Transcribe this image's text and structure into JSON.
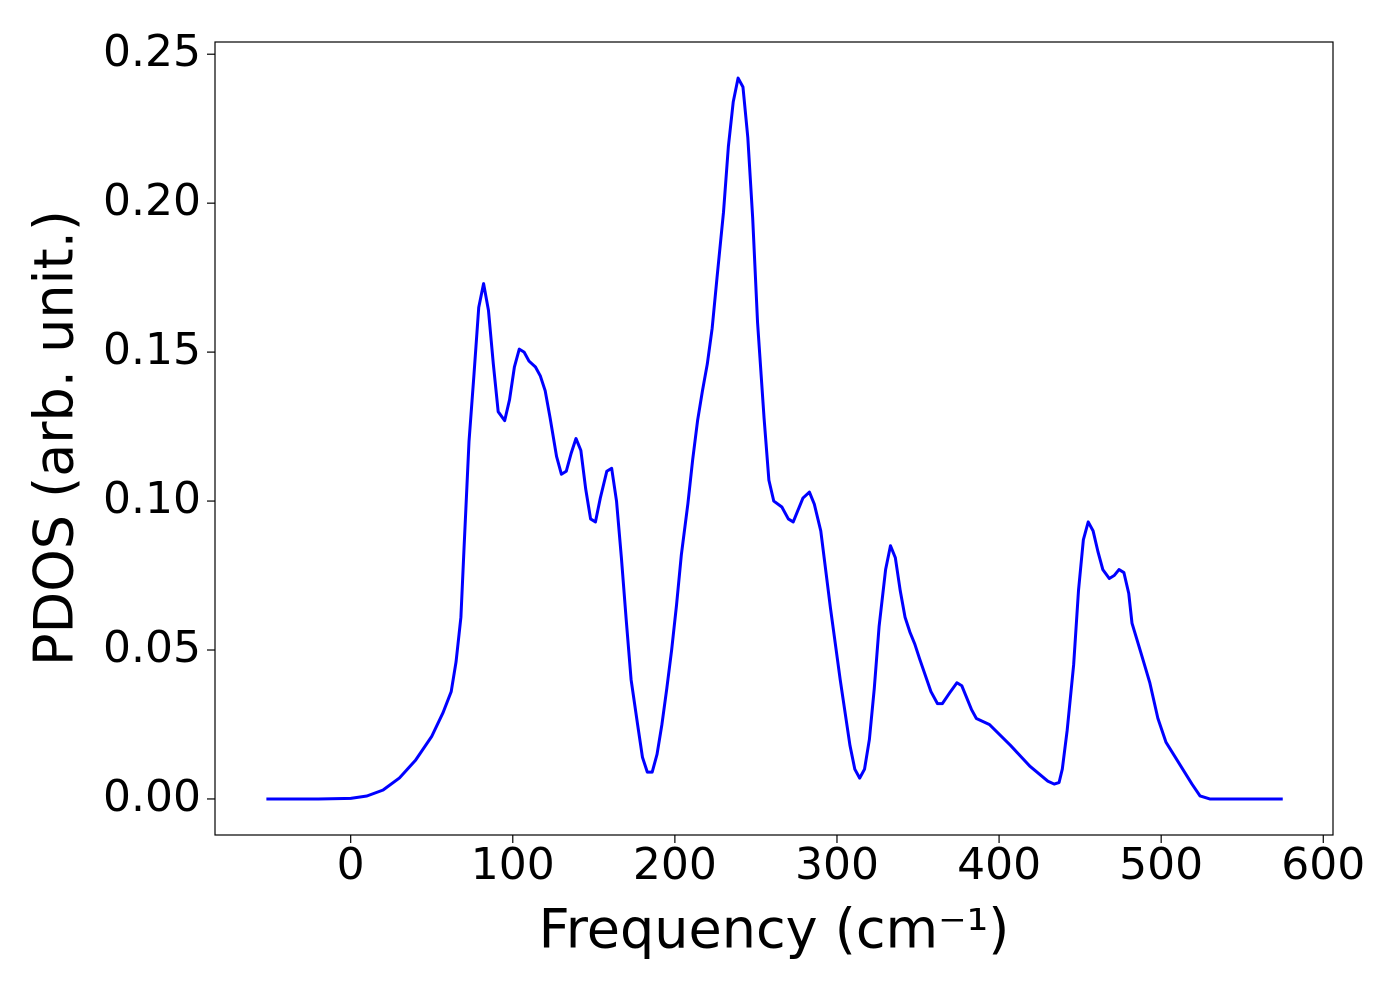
{
  "chart_data": {
    "type": "line",
    "xlabel": "Frequency (cm⁻¹)",
    "ylabel": "PDOS (arb. unit.)",
    "xlim": [
      -83.7,
      606
    ],
    "ylim": [
      -0.0121,
      0.2541
    ],
    "xticks": [
      0,
      100,
      200,
      300,
      400,
      500,
      600
    ],
    "yticks": [
      {
        "value": 0,
        "label": "0.00"
      },
      {
        "value": 0.05,
        "label": "0.05"
      },
      {
        "value": 0.1,
        "label": "0.10"
      },
      {
        "value": 0.15,
        "label": "0.15"
      },
      {
        "value": 0.2,
        "label": "0.20"
      },
      {
        "value": 0.25,
        "label": "0.25"
      }
    ],
    "series": [
      {
        "color": "#0000ff",
        "x": [
          -52,
          -20,
          0,
          10,
          20,
          30,
          40,
          50,
          57,
          62,
          65,
          68,
          70,
          73,
          76,
          79,
          82,
          85,
          88,
          91,
          95,
          98,
          101,
          104,
          107,
          110,
          114,
          117,
          120,
          123,
          127,
          130,
          133,
          136,
          139,
          142,
          145,
          148,
          151,
          154,
          158,
          161,
          164,
          167,
          170,
          173,
          177,
          180,
          183,
          186,
          189,
          192,
          195,
          198,
          201,
          204,
          208,
          211,
          214,
          217,
          220,
          223,
          226,
          230,
          233,
          236,
          239,
          242,
          245,
          248,
          251,
          255,
          258,
          261,
          266,
          270,
          273,
          276,
          279,
          283,
          286,
          290,
          296,
          302,
          308,
          311,
          314,
          317,
          320,
          323,
          326,
          330,
          333,
          336,
          339,
          342,
          345,
          348,
          351,
          358,
          362,
          365,
          370,
          374,
          377,
          383,
          386,
          394,
          407,
          419,
          430,
          434,
          437,
          439,
          442,
          446,
          449,
          452,
          455,
          458,
          461,
          464,
          468,
          471,
          474,
          477,
          480,
          482,
          487,
          493,
          498,
          503,
          511,
          519,
          524,
          530,
          575
        ],
        "values": [
          0,
          0,
          0.0002,
          0.001,
          0.003,
          0.007,
          0.013,
          0.021,
          0.029,
          0.036,
          0.046,
          0.061,
          0.085,
          0.12,
          0.142,
          0.165,
          0.173,
          0.164,
          0.146,
          0.13,
          0.127,
          0.134,
          0.145,
          0.151,
          0.15,
          0.147,
          0.145,
          0.142,
          0.137,
          0.128,
          0.115,
          0.109,
          0.11,
          0.116,
          0.121,
          0.117,
          0.104,
          0.094,
          0.093,
          0.101,
          0.11,
          0.111,
          0.1,
          0.081,
          0.06,
          0.04,
          0.025,
          0.014,
          0.009,
          0.009,
          0.015,
          0.025,
          0.037,
          0.05,
          0.065,
          0.082,
          0.099,
          0.114,
          0.127,
          0.137,
          0.146,
          0.158,
          0.175,
          0.197,
          0.219,
          0.234,
          0.242,
          0.239,
          0.222,
          0.195,
          0.16,
          0.128,
          0.107,
          0.1,
          0.098,
          0.094,
          0.093,
          0.097,
          0.101,
          0.103,
          0.099,
          0.09,
          0.064,
          0.04,
          0.018,
          0.01,
          0.007,
          0.01,
          0.02,
          0.037,
          0.058,
          0.077,
          0.085,
          0.081,
          0.07,
          0.061,
          0.056,
          0.052,
          0.047,
          0.036,
          0.032,
          0.032,
          0.036,
          0.039,
          0.038,
          0.03,
          0.027,
          0.025,
          0.018,
          0.011,
          0.006,
          0.005,
          0.0055,
          0.01,
          0.023,
          0.045,
          0.07,
          0.087,
          0.093,
          0.09,
          0.083,
          0.077,
          0.074,
          0.075,
          0.077,
          0.076,
          0.069,
          0.059,
          0.05,
          0.039,
          0.027,
          0.019,
          0.012,
          0.005,
          0.001,
          0,
          0
        ]
      }
    ]
  }
}
